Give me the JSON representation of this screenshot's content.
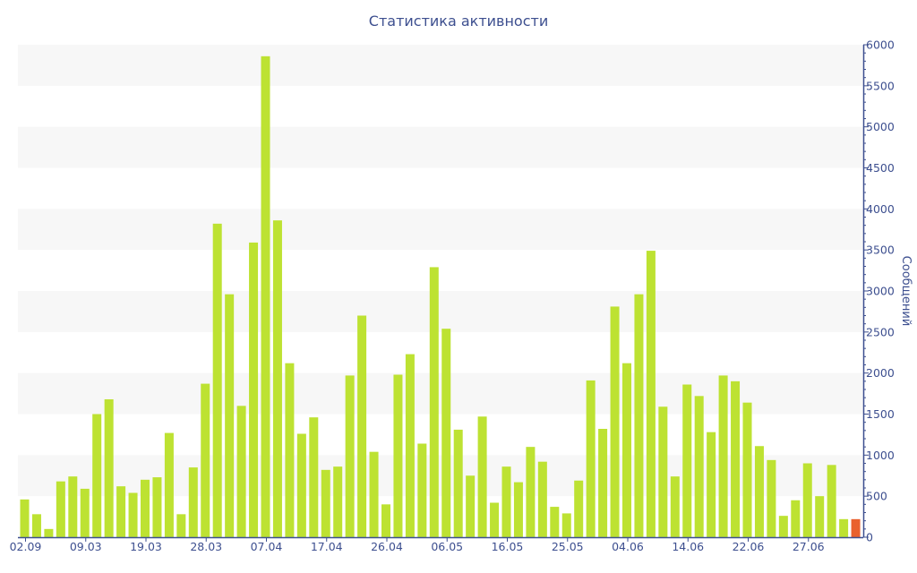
{
  "chart_data": {
    "type": "bar",
    "title": "Статистика активности",
    "ylabel": "Сообщений",
    "ylim": [
      0,
      6000
    ],
    "y_ticks": [
      0,
      500,
      1000,
      1500,
      2000,
      2500,
      3000,
      3500,
      4000,
      4500,
      5000,
      5500,
      6000
    ],
    "y_axis_side": "right",
    "grid": "alternating horizontal bands",
    "x_tick_labels": [
      {
        "index": 0,
        "label": "02.09"
      },
      {
        "index": 5,
        "label": "09.03"
      },
      {
        "index": 10,
        "label": "19.03"
      },
      {
        "index": 15,
        "label": "28.03"
      },
      {
        "index": 20,
        "label": "07.04"
      },
      {
        "index": 25,
        "label": "17.04"
      },
      {
        "index": 30,
        "label": "26.04"
      },
      {
        "index": 35,
        "label": "06.05"
      },
      {
        "index": 40,
        "label": "16.05"
      },
      {
        "index": 45,
        "label": "25.05"
      },
      {
        "index": 50,
        "label": "04.06"
      },
      {
        "index": 55,
        "label": "14.06"
      },
      {
        "index": 60,
        "label": "22.06"
      },
      {
        "index": 65,
        "label": "27.06"
      }
    ],
    "values": [
      460,
      280,
      100,
      680,
      740,
      590,
      1500,
      1680,
      620,
      540,
      700,
      730,
      1270,
      280,
      850,
      1870,
      3820,
      2960,
      1600,
      3590,
      5860,
      3860,
      2120,
      1260,
      1460,
      820,
      860,
      1970,
      2700,
      1040,
      400,
      1980,
      2230,
      1140,
      3290,
      2540,
      1310,
      750,
      1470,
      420,
      860,
      670,
      1100,
      920,
      370,
      290,
      690,
      1910,
      1320,
      2810,
      2120,
      2960,
      3490,
      1590,
      740,
      1860,
      1720,
      1280,
      1970,
      1900,
      1640,
      1110,
      940,
      260,
      450,
      900,
      500,
      880,
      220,
      220
    ],
    "colors": {
      "bar": "#bde232",
      "last_bar": "#e9612e",
      "axis": "#3d4f8f",
      "band": "#f7f7f7",
      "text": "#3d4f8f"
    }
  }
}
